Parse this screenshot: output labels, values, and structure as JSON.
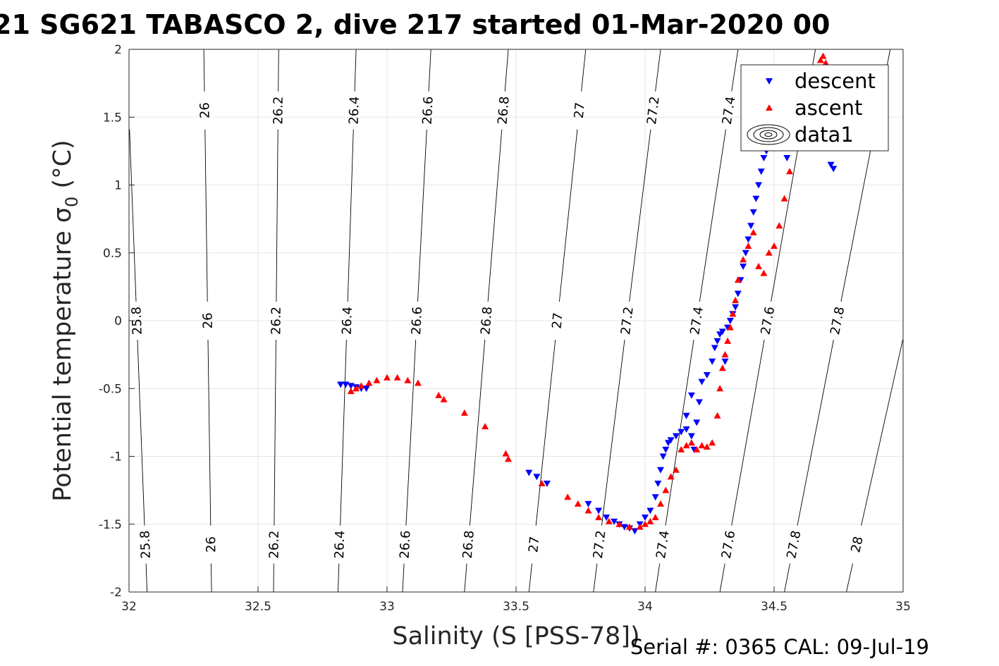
{
  "chart_data": {
    "type": "scatter",
    "title": "21 SG621 TABASCO 2, dive 217 started 01-Mar-2020 00",
    "xlabel": "Salinity (S [PSS-78])",
    "ylabel": "Potential temperature σ₀ (°C)",
    "ylabel_parts": {
      "main": "Potential temperature ",
      "sigma": "σ",
      "sub": "0",
      "unit": " (°C)"
    },
    "xlim": [
      32,
      35
    ],
    "ylim": [
      -2,
      2
    ],
    "xticks": [
      32,
      32.5,
      33,
      33.5,
      34,
      34.5,
      35
    ],
    "xtick_labels": [
      "32",
      "32.5",
      "33",
      "33.5",
      "34",
      "34.5",
      "35"
    ],
    "yticks": [
      -2,
      -1.5,
      -1,
      -0.5,
      0,
      0.5,
      1,
      1.5,
      2
    ],
    "ytick_labels": [
      "-2",
      "-1.5",
      "-1",
      "-0.5",
      "0",
      "0.5",
      "1",
      "1.5",
      "2"
    ],
    "grid": true,
    "legend_position": "top-right",
    "legend": [
      {
        "label": "descent",
        "marker": "triangle-down",
        "color": "#0000ff"
      },
      {
        "label": "ascent",
        "marker": "triangle-up",
        "color": "#ff0000"
      },
      {
        "label": "data1",
        "marker": "contour"
      }
    ],
    "footer": "Serial #: 0365  CAL: 09-Jul-19",
    "density_contours": {
      "levels": [
        25.8,
        26,
        26.2,
        26.4,
        26.6,
        26.8,
        27,
        27.2,
        27.4,
        27.6,
        27.8,
        28
      ],
      "labels": [
        "25.8",
        "26",
        "26.2",
        "26.4",
        "26.6",
        "26.8",
        "27",
        "27.2",
        "27.4",
        "27.6",
        "27.8",
        "28"
      ],
      "salinity_at_-2": [
        32.07,
        32.32,
        32.56,
        32.81,
        33.06,
        33.3,
        33.55,
        33.8,
        34.04,
        34.29,
        34.54,
        34.78
      ],
      "salinity_at_2": [
        31.99,
        32.29,
        32.58,
        32.88,
        33.17,
        33.47,
        33.77,
        34.06,
        34.36,
        34.66,
        34.95,
        35.25
      ],
      "label_temps": [
        1.55,
        0.0,
        -1.65
      ]
    },
    "series": [
      {
        "name": "descent",
        "marker": "triangle-down",
        "color": "#0000ff",
        "x": [
          32.82,
          32.84,
          32.86,
          32.88,
          32.9,
          32.92,
          33.55,
          33.58,
          33.62,
          33.78,
          33.82,
          33.85,
          33.88,
          33.9,
          33.92,
          33.94,
          33.96,
          33.98,
          34.0,
          34.02,
          34.04,
          34.05,
          34.06,
          34.07,
          34.08,
          34.09,
          34.1,
          34.12,
          34.14,
          34.16,
          34.18,
          34.19,
          34.2,
          34.21,
          34.16,
          34.18,
          34.22,
          34.24,
          34.26,
          34.27,
          34.28,
          34.29,
          34.3,
          34.31,
          34.32,
          34.33,
          34.34,
          34.35,
          34.36,
          34.37,
          34.38,
          34.39,
          34.4,
          34.41,
          34.42,
          34.43,
          34.44,
          34.45,
          34.46,
          34.47,
          34.48,
          34.49,
          34.5,
          34.53,
          34.54,
          34.55,
          34.72,
          34.73
        ],
        "y": [
          -0.47,
          -0.47,
          -0.48,
          -0.49,
          -0.5,
          -0.5,
          -1.12,
          -1.15,
          -1.2,
          -1.35,
          -1.4,
          -1.45,
          -1.48,
          -1.5,
          -1.52,
          -1.53,
          -1.55,
          -1.5,
          -1.45,
          -1.4,
          -1.3,
          -1.2,
          -1.1,
          -1.0,
          -0.95,
          -0.9,
          -0.88,
          -0.85,
          -0.82,
          -0.8,
          -0.85,
          -0.95,
          -0.75,
          -0.6,
          -0.7,
          -0.55,
          -0.45,
          -0.4,
          -0.3,
          -0.2,
          -0.15,
          -0.1,
          -0.08,
          -0.3,
          -0.05,
          0.0,
          0.05,
          0.1,
          0.2,
          0.3,
          0.4,
          0.5,
          0.6,
          0.7,
          0.8,
          0.9,
          1.0,
          1.1,
          1.2,
          1.25,
          1.3,
          1.35,
          1.4,
          1.45,
          1.3,
          1.2,
          1.15,
          1.12
        ]
      },
      {
        "name": "ascent",
        "marker": "triangle-up",
        "color": "#ff0000",
        "x": [
          32.86,
          32.88,
          32.9,
          32.93,
          32.96,
          33.0,
          33.04,
          33.08,
          33.12,
          33.2,
          33.22,
          33.3,
          33.38,
          33.46,
          33.47,
          33.6,
          33.7,
          33.74,
          33.78,
          33.82,
          33.86,
          33.9,
          33.94,
          33.98,
          34.0,
          34.02,
          34.04,
          34.06,
          34.08,
          34.1,
          34.12,
          34.14,
          34.16,
          34.18,
          34.2,
          34.22,
          34.24,
          34.26,
          34.28,
          34.29,
          34.3,
          34.31,
          34.32,
          34.33,
          34.34,
          34.35,
          34.36,
          34.38,
          34.4,
          34.42,
          34.44,
          34.46,
          34.48,
          34.5,
          34.52,
          34.54,
          34.56,
          34.58,
          34.6,
          34.62,
          34.64,
          34.66,
          34.68,
          34.69,
          34.7,
          34.72,
          34.73
        ],
        "y": [
          -0.52,
          -0.5,
          -0.48,
          -0.46,
          -0.44,
          -0.42,
          -0.42,
          -0.44,
          -0.46,
          -0.55,
          -0.58,
          -0.68,
          -0.78,
          -0.98,
          -1.02,
          -1.2,
          -1.3,
          -1.35,
          -1.4,
          -1.45,
          -1.48,
          -1.5,
          -1.52,
          -1.52,
          -1.5,
          -1.48,
          -1.45,
          -1.35,
          -1.25,
          -1.15,
          -1.1,
          -0.95,
          -0.92,
          -0.9,
          -0.95,
          -0.92,
          -0.93,
          -0.9,
          -0.7,
          -0.5,
          -0.35,
          -0.25,
          -0.15,
          -0.05,
          0.05,
          0.15,
          0.3,
          0.45,
          0.55,
          0.65,
          0.4,
          0.35,
          0.5,
          0.55,
          0.7,
          0.9,
          1.1,
          1.3,
          1.45,
          1.6,
          1.75,
          1.85,
          1.92,
          1.95,
          1.9,
          1.8,
          1.7
        ]
      }
    ]
  }
}
